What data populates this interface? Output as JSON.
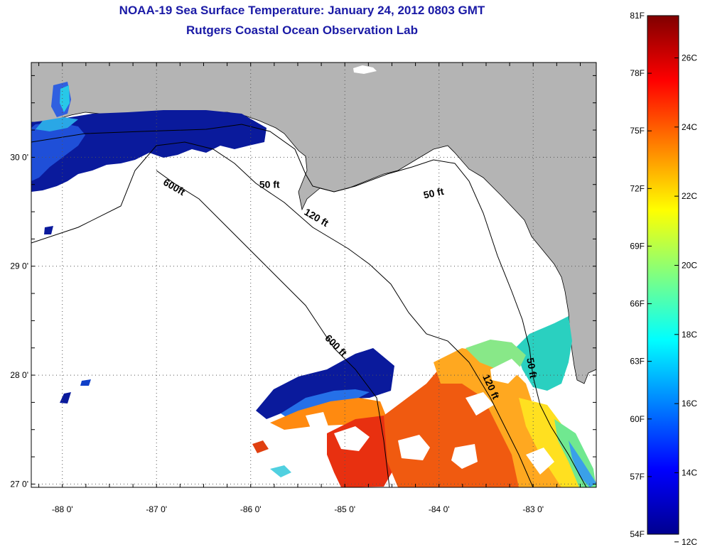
{
  "title": {
    "line1": "NOAA-19 Sea Surface Temperature:  January 24, 2012 0803 GMT",
    "line2": "Rutgers Coastal Ocean Observation Lab"
  },
  "map": {
    "lon_range": [
      -88.33,
      -82.33
    ],
    "lat_range": [
      26.97,
      30.87
    ],
    "lon_ticks": [
      {
        "value": -88,
        "label": "-88 0'"
      },
      {
        "value": -87,
        "label": "-87 0'"
      },
      {
        "value": -86,
        "label": "-86 0'"
      },
      {
        "value": -85,
        "label": "-85 0'"
      },
      {
        "value": -84,
        "label": "-84 0'"
      },
      {
        "value": -83,
        "label": "-83 0'"
      }
    ],
    "lat_ticks": [
      {
        "value": 27,
        "label": "27 0'"
      },
      {
        "value": 28,
        "label": "28 0'"
      },
      {
        "value": 29,
        "label": "29 0'"
      },
      {
        "value": 30,
        "label": "30 0'"
      }
    ],
    "land_color": "#b4b4b4",
    "ocean_color": "#ffffff",
    "contour_labels": [
      {
        "text": "50 ft",
        "lon": -85.8,
        "lat": 29.72
      },
      {
        "text": "50 ft",
        "lon": -84.05,
        "lat": 29.64,
        "rotate": -12
      },
      {
        "text": "50 ft",
        "lon": -83.05,
        "lat": 28.06,
        "rotate": 80
      },
      {
        "text": "120 ft",
        "lon": -85.32,
        "lat": 29.42,
        "rotate": 30
      },
      {
        "text": "120 ft",
        "lon": -83.48,
        "lat": 27.88,
        "rotate": 65
      },
      {
        "text": "600ft",
        "lon": -86.83,
        "lat": 29.7,
        "rotate": 30
      },
      {
        "text": "600 ft",
        "lon": -85.12,
        "lat": 28.25,
        "rotate": 45
      }
    ]
  },
  "colorbar": {
    "colors": [
      "#00008f",
      "#0000ff",
      "#0080ff",
      "#00ffff",
      "#80ff80",
      "#ffff00",
      "#ff8000",
      "#ff0000",
      "#800000"
    ],
    "range_f": [
      54,
      81
    ],
    "fahrenheit_ticks": [
      {
        "value": 54,
        "label": "54F"
      },
      {
        "value": 57,
        "label": "57F"
      },
      {
        "value": 60,
        "label": "60F"
      },
      {
        "value": 63,
        "label": "63F"
      },
      {
        "value": 66,
        "label": "66F"
      },
      {
        "value": 69,
        "label": "69F"
      },
      {
        "value": 72,
        "label": "72F"
      },
      {
        "value": 75,
        "label": "75F"
      },
      {
        "value": 78,
        "label": "78F"
      },
      {
        "value": 81,
        "label": "81F"
      }
    ],
    "celsius_ticks": [
      {
        "value": 12,
        "label": "12C"
      },
      {
        "value": 14,
        "label": "14C"
      },
      {
        "value": 16,
        "label": "16C"
      },
      {
        "value": 18,
        "label": "18C"
      },
      {
        "value": 20,
        "label": "20C"
      },
      {
        "value": 22,
        "label": "22C"
      },
      {
        "value": 24,
        "label": "24C"
      },
      {
        "value": 26,
        "label": "26C"
      }
    ]
  }
}
